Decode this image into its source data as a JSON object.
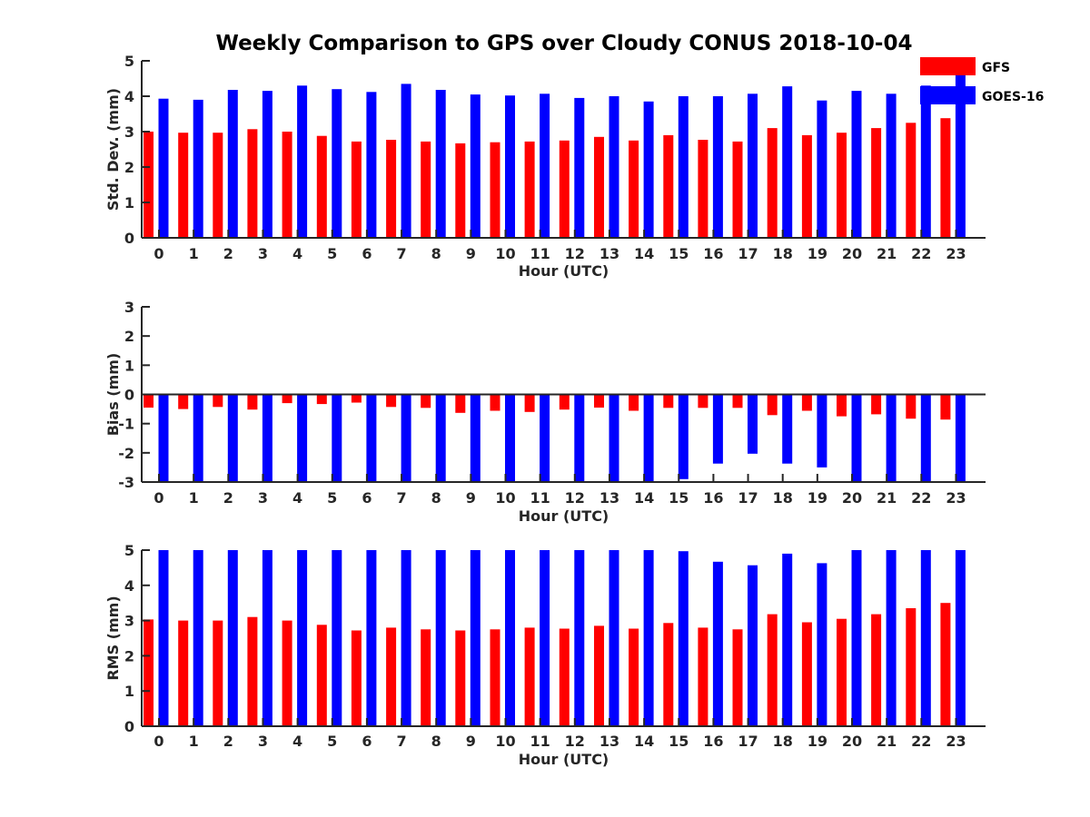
{
  "chart_data": {
    "title": "Weekly Comparison to GPS over Cloudy CONUS 2018-10-04",
    "type": "bar",
    "categories": [
      "0",
      "1",
      "2",
      "3",
      "4",
      "5",
      "6",
      "7",
      "8",
      "9",
      "10",
      "11",
      "12",
      "13",
      "14",
      "15",
      "16",
      "17",
      "18",
      "19",
      "20",
      "21",
      "22",
      "23"
    ],
    "legend": {
      "placement": "top-right",
      "entries": [
        "GFS",
        "GOES-16"
      ]
    },
    "colors": {
      "GFS": "#ff0000",
      "GOES-16": "#0000ff"
    },
    "panels": [
      {
        "type": "bar",
        "xlabel": "Hour (UTC)",
        "ylabel": "Std. Dev. (mm)",
        "ylim": [
          0,
          5
        ],
        "yticks": [
          0,
          1,
          2,
          3,
          4,
          5
        ],
        "series": [
          {
            "name": "GFS",
            "values": [
              3.0,
              2.97,
              2.97,
              3.07,
              3.0,
              2.88,
              2.72,
              2.77,
              2.72,
              2.67,
              2.7,
              2.72,
              2.75,
              2.85,
              2.75,
              2.9,
              2.77,
              2.72,
              3.1,
              2.9,
              2.97,
              3.1,
              3.25,
              3.38
            ]
          },
          {
            "name": "GOES-16",
            "values": [
              3.93,
              3.9,
              4.18,
              4.15,
              4.3,
              4.2,
              4.12,
              4.35,
              4.18,
              4.05,
              4.02,
              4.07,
              3.95,
              4.0,
              3.85,
              4.0,
              4.0,
              4.07,
              4.28,
              3.88,
              4.15,
              4.07,
              4.3,
              4.6
            ]
          }
        ]
      },
      {
        "type": "bar",
        "xlabel": "Hour (UTC)",
        "ylabel": "Bias (mm)",
        "ylim": [
          -3,
          3
        ],
        "yticks": [
          -3,
          -2,
          -1,
          0,
          1,
          2,
          3
        ],
        "series": [
          {
            "name": "GFS",
            "values": [
              -0.45,
              -0.5,
              -0.43,
              -0.52,
              -0.3,
              -0.33,
              -0.28,
              -0.43,
              -0.46,
              -0.63,
              -0.56,
              -0.6,
              -0.52,
              -0.45,
              -0.56,
              -0.46,
              -0.46,
              -0.46,
              -0.71,
              -0.56,
              -0.75,
              -0.68,
              -0.83,
              -0.86
            ]
          },
          {
            "name": "GOES-16",
            "values": [
              -3.0,
              -3.0,
              -3.0,
              -3.0,
              -3.0,
              -3.0,
              -3.0,
              -3.0,
              -3.0,
              -3.0,
              -3.0,
              -3.0,
              -3.0,
              -3.0,
              -3.0,
              -2.9,
              -2.37,
              -2.03,
              -2.37,
              -2.5,
              -3.0,
              -3.0,
              -3.0,
              -3.0
            ]
          }
        ]
      },
      {
        "type": "bar",
        "xlabel": "Hour (UTC)",
        "ylabel": "RMS (mm)",
        "ylim": [
          0,
          5
        ],
        "yticks": [
          0,
          1,
          2,
          3,
          4,
          5
        ],
        "series": [
          {
            "name": "GFS",
            "values": [
              3.03,
              3.0,
              3.0,
              3.1,
              3.0,
              2.88,
              2.72,
              2.8,
              2.75,
              2.72,
              2.75,
              2.8,
              2.77,
              2.85,
              2.77,
              2.93,
              2.8,
              2.75,
              3.18,
              2.95,
              3.05,
              3.18,
              3.35,
              3.5
            ]
          },
          {
            "name": "GOES-16",
            "values": [
              5.0,
              5.0,
              5.0,
              5.0,
              5.0,
              5.0,
              5.0,
              5.0,
              5.0,
              5.0,
              5.0,
              5.0,
              5.0,
              5.0,
              5.0,
              4.97,
              4.67,
              4.57,
              4.9,
              4.63,
              5.0,
              5.0,
              5.0,
              5.0
            ]
          }
        ]
      }
    ]
  }
}
